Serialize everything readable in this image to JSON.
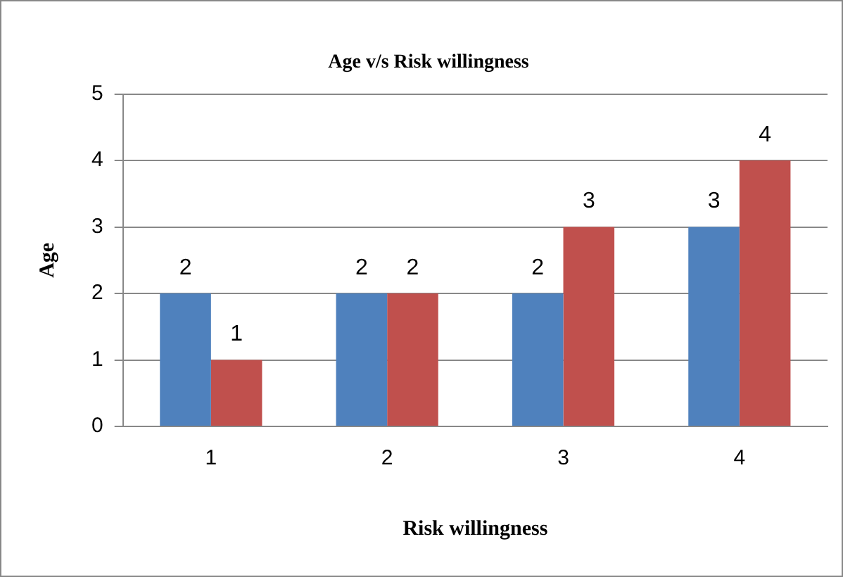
{
  "chart_data": {
    "type": "bar",
    "title": "Age v/s Risk willingness",
    "xlabel": "Risk willingness",
    "ylabel": "Age",
    "categories": [
      "1",
      "2",
      "3",
      "4"
    ],
    "series": [
      {
        "color": "#4f81bd",
        "values": [
          2,
          2,
          2,
          3
        ]
      },
      {
        "color": "#c0504d",
        "values": [
          1,
          2,
          3,
          4
        ]
      }
    ],
    "ylim": [
      0,
      5
    ],
    "yticks": [
      0,
      1,
      2,
      3,
      4,
      5
    ],
    "grid": "y",
    "legend": false,
    "data_labels": true
  }
}
